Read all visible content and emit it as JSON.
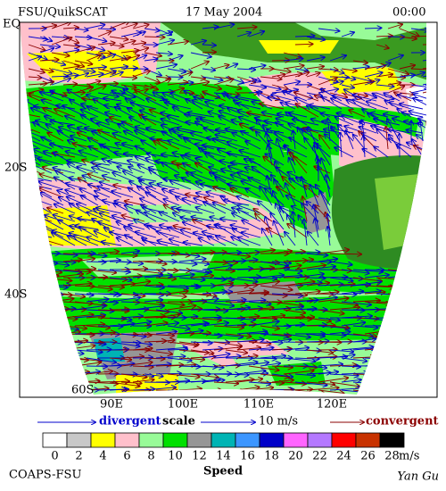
{
  "header": {
    "title": "FSU/QuikSCAT",
    "date": "17 May 2004",
    "time": "00:00"
  },
  "map": {
    "lat_labels": [
      "EQ",
      "20S",
      "40S",
      "60S"
    ],
    "lon_labels": [
      "90E",
      "100E",
      "110E",
      "120E"
    ]
  },
  "legend": {
    "divergent": "divergent",
    "scale": "scale",
    "scale_value": "10 m/s",
    "convergent": "convergent"
  },
  "colorbar": {
    "ticks": [
      0,
      2,
      4,
      6,
      8,
      10,
      12,
      14,
      16,
      18,
      20,
      22,
      24,
      26,
      28
    ],
    "colors": [
      "#ffffff",
      "#c8c8c8",
      "#ffff00",
      "#ffc0cb",
      "#98fb98",
      "#00e000",
      "#969696",
      "#00b4b4",
      "#3c96ff",
      "#0000c8",
      "#ff64ff",
      "#b478ff",
      "#ff0000",
      "#c83200",
      "#000000"
    ],
    "unit": "m/s",
    "label": "Speed"
  },
  "footer": {
    "left": "COAPS-FSU",
    "right": "Yan Gu"
  }
}
